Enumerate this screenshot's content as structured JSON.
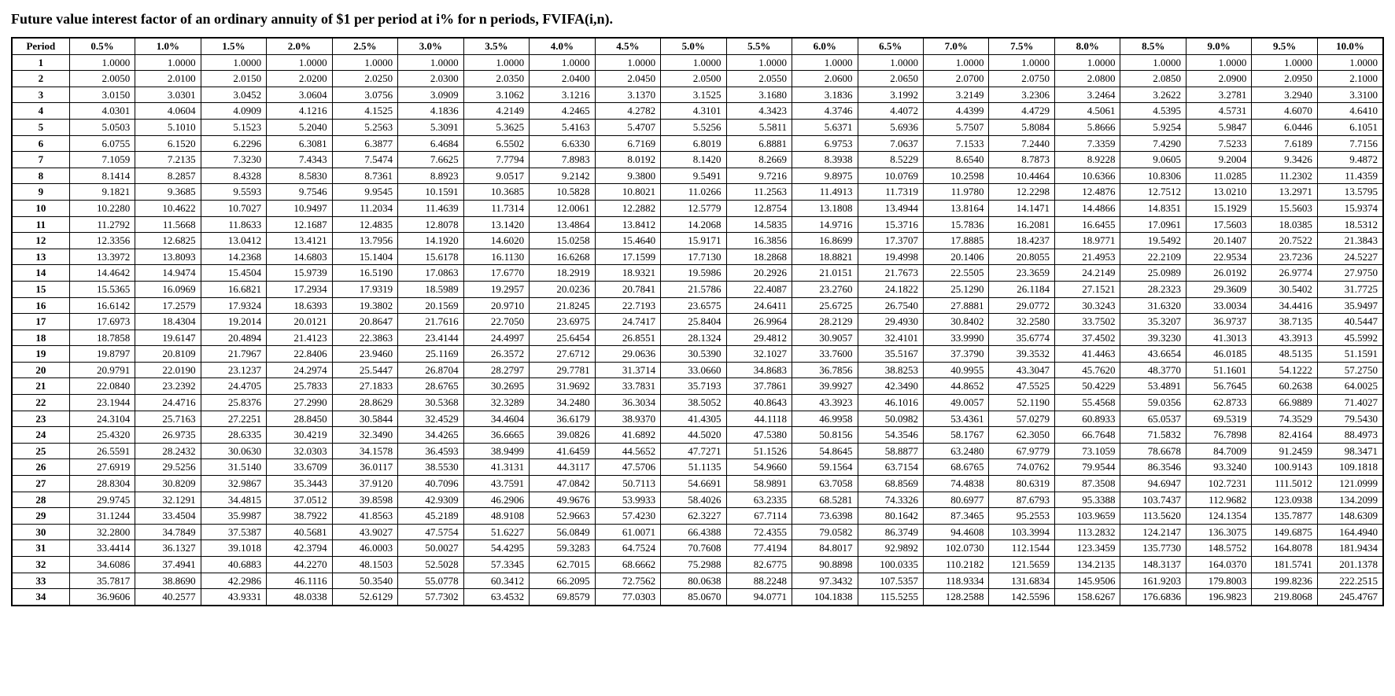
{
  "title": "Future value interest factor of an ordinary annuity of $1 per period at i% for n periods, FVIFA(i,n).",
  "styling": {
    "background_color": "#ffffff",
    "text_color": "#000000",
    "border_color": "#000000",
    "header_fontweight": "bold",
    "period_fontweight": "bold",
    "cell_align": "right",
    "header_align": "center",
    "period_align": "center",
    "font_family": "Times New Roman",
    "title_fontsize_pt": 14,
    "cell_fontsize_pt": 10
  },
  "table": {
    "period_header": "Period",
    "rate_labels": [
      "0.5%",
      "1.0%",
      "1.5%",
      "2.0%",
      "2.5%",
      "3.0%",
      "3.5%",
      "4.0%",
      "4.5%",
      "5.0%",
      "5.5%",
      "6.0%",
      "6.5%",
      "7.0%",
      "7.5%",
      "8.0%",
      "8.5%",
      "9.0%",
      "9.5%",
      "10.0%"
    ],
    "periods": [
      "1",
      "2",
      "3",
      "4",
      "5",
      "6",
      "7",
      "8",
      "9",
      "10",
      "11",
      "12",
      "13",
      "14",
      "15",
      "16",
      "17",
      "18",
      "19",
      "20",
      "21",
      "22",
      "23",
      "24",
      "25",
      "26",
      "27",
      "28",
      "29",
      "30",
      "31",
      "32",
      "33",
      "34"
    ],
    "values": [
      [
        "1.0000",
        "1.0000",
        "1.0000",
        "1.0000",
        "1.0000",
        "1.0000",
        "1.0000",
        "1.0000",
        "1.0000",
        "1.0000",
        "1.0000",
        "1.0000",
        "1.0000",
        "1.0000",
        "1.0000",
        "1.0000",
        "1.0000",
        "1.0000",
        "1.0000",
        "1.0000"
      ],
      [
        "2.0050",
        "2.0100",
        "2.0150",
        "2.0200",
        "2.0250",
        "2.0300",
        "2.0350",
        "2.0400",
        "2.0450",
        "2.0500",
        "2.0550",
        "2.0600",
        "2.0650",
        "2.0700",
        "2.0750",
        "2.0800",
        "2.0850",
        "2.0900",
        "2.0950",
        "2.1000"
      ],
      [
        "3.0150",
        "3.0301",
        "3.0452",
        "3.0604",
        "3.0756",
        "3.0909",
        "3.1062",
        "3.1216",
        "3.1370",
        "3.1525",
        "3.1680",
        "3.1836",
        "3.1992",
        "3.2149",
        "3.2306",
        "3.2464",
        "3.2622",
        "3.2781",
        "3.2940",
        "3.3100"
      ],
      [
        "4.0301",
        "4.0604",
        "4.0909",
        "4.1216",
        "4.1525",
        "4.1836",
        "4.2149",
        "4.2465",
        "4.2782",
        "4.3101",
        "4.3423",
        "4.3746",
        "4.4072",
        "4.4399",
        "4.4729",
        "4.5061",
        "4.5395",
        "4.5731",
        "4.6070",
        "4.6410"
      ],
      [
        "5.0503",
        "5.1010",
        "5.1523",
        "5.2040",
        "5.2563",
        "5.3091",
        "5.3625",
        "5.4163",
        "5.4707",
        "5.5256",
        "5.5811",
        "5.6371",
        "5.6936",
        "5.7507",
        "5.8084",
        "5.8666",
        "5.9254",
        "5.9847",
        "6.0446",
        "6.1051"
      ],
      [
        "6.0755",
        "6.1520",
        "6.2296",
        "6.3081",
        "6.3877",
        "6.4684",
        "6.5502",
        "6.6330",
        "6.7169",
        "6.8019",
        "6.8881",
        "6.9753",
        "7.0637",
        "7.1533",
        "7.2440",
        "7.3359",
        "7.4290",
        "7.5233",
        "7.6189",
        "7.7156"
      ],
      [
        "7.1059",
        "7.2135",
        "7.3230",
        "7.4343",
        "7.5474",
        "7.6625",
        "7.7794",
        "7.8983",
        "8.0192",
        "8.1420",
        "8.2669",
        "8.3938",
        "8.5229",
        "8.6540",
        "8.7873",
        "8.9228",
        "9.0605",
        "9.2004",
        "9.3426",
        "9.4872"
      ],
      [
        "8.1414",
        "8.2857",
        "8.4328",
        "8.5830",
        "8.7361",
        "8.8923",
        "9.0517",
        "9.2142",
        "9.3800",
        "9.5491",
        "9.7216",
        "9.8975",
        "10.0769",
        "10.2598",
        "10.4464",
        "10.6366",
        "10.8306",
        "11.0285",
        "11.2302",
        "11.4359"
      ],
      [
        "9.1821",
        "9.3685",
        "9.5593",
        "9.7546",
        "9.9545",
        "10.1591",
        "10.3685",
        "10.5828",
        "10.8021",
        "11.0266",
        "11.2563",
        "11.4913",
        "11.7319",
        "11.9780",
        "12.2298",
        "12.4876",
        "12.7512",
        "13.0210",
        "13.2971",
        "13.5795"
      ],
      [
        "10.2280",
        "10.4622",
        "10.7027",
        "10.9497",
        "11.2034",
        "11.4639",
        "11.7314",
        "12.0061",
        "12.2882",
        "12.5779",
        "12.8754",
        "13.1808",
        "13.4944",
        "13.8164",
        "14.1471",
        "14.4866",
        "14.8351",
        "15.1929",
        "15.5603",
        "15.9374"
      ],
      [
        "11.2792",
        "11.5668",
        "11.8633",
        "12.1687",
        "12.4835",
        "12.8078",
        "13.1420",
        "13.4864",
        "13.8412",
        "14.2068",
        "14.5835",
        "14.9716",
        "15.3716",
        "15.7836",
        "16.2081",
        "16.6455",
        "17.0961",
        "17.5603",
        "18.0385",
        "18.5312"
      ],
      [
        "12.3356",
        "12.6825",
        "13.0412",
        "13.4121",
        "13.7956",
        "14.1920",
        "14.6020",
        "15.0258",
        "15.4640",
        "15.9171",
        "16.3856",
        "16.8699",
        "17.3707",
        "17.8885",
        "18.4237",
        "18.9771",
        "19.5492",
        "20.1407",
        "20.7522",
        "21.3843"
      ],
      [
        "13.3972",
        "13.8093",
        "14.2368",
        "14.6803",
        "15.1404",
        "15.6178",
        "16.1130",
        "16.6268",
        "17.1599",
        "17.7130",
        "18.2868",
        "18.8821",
        "19.4998",
        "20.1406",
        "20.8055",
        "21.4953",
        "22.2109",
        "22.9534",
        "23.7236",
        "24.5227"
      ],
      [
        "14.4642",
        "14.9474",
        "15.4504",
        "15.9739",
        "16.5190",
        "17.0863",
        "17.6770",
        "18.2919",
        "18.9321",
        "19.5986",
        "20.2926",
        "21.0151",
        "21.7673",
        "22.5505",
        "23.3659",
        "24.2149",
        "25.0989",
        "26.0192",
        "26.9774",
        "27.9750"
      ],
      [
        "15.5365",
        "16.0969",
        "16.6821",
        "17.2934",
        "17.9319",
        "18.5989",
        "19.2957",
        "20.0236",
        "20.7841",
        "21.5786",
        "22.4087",
        "23.2760",
        "24.1822",
        "25.1290",
        "26.1184",
        "27.1521",
        "28.2323",
        "29.3609",
        "30.5402",
        "31.7725"
      ],
      [
        "16.6142",
        "17.2579",
        "17.9324",
        "18.6393",
        "19.3802",
        "20.1569",
        "20.9710",
        "21.8245",
        "22.7193",
        "23.6575",
        "24.6411",
        "25.6725",
        "26.7540",
        "27.8881",
        "29.0772",
        "30.3243",
        "31.6320",
        "33.0034",
        "34.4416",
        "35.9497"
      ],
      [
        "17.6973",
        "18.4304",
        "19.2014",
        "20.0121",
        "20.8647",
        "21.7616",
        "22.7050",
        "23.6975",
        "24.7417",
        "25.8404",
        "26.9964",
        "28.2129",
        "29.4930",
        "30.8402",
        "32.2580",
        "33.7502",
        "35.3207",
        "36.9737",
        "38.7135",
        "40.5447"
      ],
      [
        "18.7858",
        "19.6147",
        "20.4894",
        "21.4123",
        "22.3863",
        "23.4144",
        "24.4997",
        "25.6454",
        "26.8551",
        "28.1324",
        "29.4812",
        "30.9057",
        "32.4101",
        "33.9990",
        "35.6774",
        "37.4502",
        "39.3230",
        "41.3013",
        "43.3913",
        "45.5992"
      ],
      [
        "19.8797",
        "20.8109",
        "21.7967",
        "22.8406",
        "23.9460",
        "25.1169",
        "26.3572",
        "27.6712",
        "29.0636",
        "30.5390",
        "32.1027",
        "33.7600",
        "35.5167",
        "37.3790",
        "39.3532",
        "41.4463",
        "43.6654",
        "46.0185",
        "48.5135",
        "51.1591"
      ],
      [
        "20.9791",
        "22.0190",
        "23.1237",
        "24.2974",
        "25.5447",
        "26.8704",
        "28.2797",
        "29.7781",
        "31.3714",
        "33.0660",
        "34.8683",
        "36.7856",
        "38.8253",
        "40.9955",
        "43.3047",
        "45.7620",
        "48.3770",
        "51.1601",
        "54.1222",
        "57.2750"
      ],
      [
        "22.0840",
        "23.2392",
        "24.4705",
        "25.7833",
        "27.1833",
        "28.6765",
        "30.2695",
        "31.9692",
        "33.7831",
        "35.7193",
        "37.7861",
        "39.9927",
        "42.3490",
        "44.8652",
        "47.5525",
        "50.4229",
        "53.4891",
        "56.7645",
        "60.2638",
        "64.0025"
      ],
      [
        "23.1944",
        "24.4716",
        "25.8376",
        "27.2990",
        "28.8629",
        "30.5368",
        "32.3289",
        "34.2480",
        "36.3034",
        "38.5052",
        "40.8643",
        "43.3923",
        "46.1016",
        "49.0057",
        "52.1190",
        "55.4568",
        "59.0356",
        "62.8733",
        "66.9889",
        "71.4027"
      ],
      [
        "24.3104",
        "25.7163",
        "27.2251",
        "28.8450",
        "30.5844",
        "32.4529",
        "34.4604",
        "36.6179",
        "38.9370",
        "41.4305",
        "44.1118",
        "46.9958",
        "50.0982",
        "53.4361",
        "57.0279",
        "60.8933",
        "65.0537",
        "69.5319",
        "74.3529",
        "79.5430"
      ],
      [
        "25.4320",
        "26.9735",
        "28.6335",
        "30.4219",
        "32.3490",
        "34.4265",
        "36.6665",
        "39.0826",
        "41.6892",
        "44.5020",
        "47.5380",
        "50.8156",
        "54.3546",
        "58.1767",
        "62.3050",
        "66.7648",
        "71.5832",
        "76.7898",
        "82.4164",
        "88.4973"
      ],
      [
        "26.5591",
        "28.2432",
        "30.0630",
        "32.0303",
        "34.1578",
        "36.4593",
        "38.9499",
        "41.6459",
        "44.5652",
        "47.7271",
        "51.1526",
        "54.8645",
        "58.8877",
        "63.2480",
        "67.9779",
        "73.1059",
        "78.6678",
        "84.7009",
        "91.2459",
        "98.3471"
      ],
      [
        "27.6919",
        "29.5256",
        "31.5140",
        "33.6709",
        "36.0117",
        "38.5530",
        "41.3131",
        "44.3117",
        "47.5706",
        "51.1135",
        "54.9660",
        "59.1564",
        "63.7154",
        "68.6765",
        "74.0762",
        "79.9544",
        "86.3546",
        "93.3240",
        "100.9143",
        "109.1818"
      ],
      [
        "28.8304",
        "30.8209",
        "32.9867",
        "35.3443",
        "37.9120",
        "40.7096",
        "43.7591",
        "47.0842",
        "50.7113",
        "54.6691",
        "58.9891",
        "63.7058",
        "68.8569",
        "74.4838",
        "80.6319",
        "87.3508",
        "94.6947",
        "102.7231",
        "111.5012",
        "121.0999"
      ],
      [
        "29.9745",
        "32.1291",
        "34.4815",
        "37.0512",
        "39.8598",
        "42.9309",
        "46.2906",
        "49.9676",
        "53.9933",
        "58.4026",
        "63.2335",
        "68.5281",
        "74.3326",
        "80.6977",
        "87.6793",
        "95.3388",
        "103.7437",
        "112.9682",
        "123.0938",
        "134.2099"
      ],
      [
        "31.1244",
        "33.4504",
        "35.9987",
        "38.7922",
        "41.8563",
        "45.2189",
        "48.9108",
        "52.9663",
        "57.4230",
        "62.3227",
        "67.7114",
        "73.6398",
        "80.1642",
        "87.3465",
        "95.2553",
        "103.9659",
        "113.5620",
        "124.1354",
        "135.7877",
        "148.6309"
      ],
      [
        "32.2800",
        "34.7849",
        "37.5387",
        "40.5681",
        "43.9027",
        "47.5754",
        "51.6227",
        "56.0849",
        "61.0071",
        "66.4388",
        "72.4355",
        "79.0582",
        "86.3749",
        "94.4608",
        "103.3994",
        "113.2832",
        "124.2147",
        "136.3075",
        "149.6875",
        "164.4940"
      ],
      [
        "33.4414",
        "36.1327",
        "39.1018",
        "42.3794",
        "46.0003",
        "50.0027",
        "54.4295",
        "59.3283",
        "64.7524",
        "70.7608",
        "77.4194",
        "84.8017",
        "92.9892",
        "102.0730",
        "112.1544",
        "123.3459",
        "135.7730",
        "148.5752",
        "164.8078",
        "181.9434"
      ],
      [
        "34.6086",
        "37.4941",
        "40.6883",
        "44.2270",
        "48.1503",
        "52.5028",
        "57.3345",
        "62.7015",
        "68.6662",
        "75.2988",
        "82.6775",
        "90.8898",
        "100.0335",
        "110.2182",
        "121.5659",
        "134.2135",
        "148.3137",
        "164.0370",
        "181.5741",
        "201.1378"
      ],
      [
        "35.7817",
        "38.8690",
        "42.2986",
        "46.1116",
        "50.3540",
        "55.0778",
        "60.3412",
        "66.2095",
        "72.7562",
        "80.0638",
        "88.2248",
        "97.3432",
        "107.5357",
        "118.9334",
        "131.6834",
        "145.9506",
        "161.9203",
        "179.8003",
        "199.8236",
        "222.2515"
      ],
      [
        "36.9606",
        "40.2577",
        "43.9331",
        "48.0338",
        "52.6129",
        "57.7302",
        "63.4532",
        "69.8579",
        "77.0303",
        "85.0670",
        "94.0771",
        "104.1838",
        "115.5255",
        "128.2588",
        "142.5596",
        "158.6267",
        "176.6836",
        "196.9823",
        "219.8068",
        "245.4767"
      ]
    ]
  }
}
